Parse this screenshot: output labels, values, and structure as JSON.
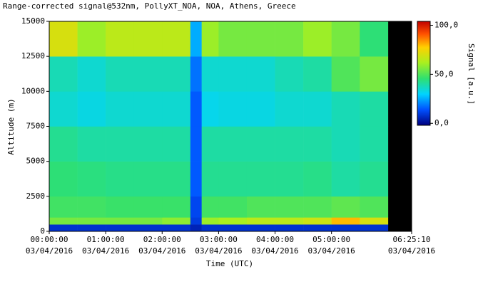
{
  "chart_data": {
    "type": "heatmap",
    "title": "Range-corrected signal@532nm, PollyXT_NOA, NOA, Athens, Greece",
    "x_label": "Time (UTC)",
    "y_label": "Altitude (m)",
    "colorbar_label": "Signal [a.u.]",
    "xlim": [
      0,
      6.4194
    ],
    "xticks": [
      {
        "value": 0,
        "label": "00:00:00"
      },
      {
        "value": 1,
        "label": "01:00:00"
      },
      {
        "value": 2,
        "label": "02:00:00"
      },
      {
        "value": 3,
        "label": "03:00:00"
      },
      {
        "value": 4,
        "label": "04:00:00"
      },
      {
        "value": 5,
        "label": "05:00:00"
      },
      {
        "value": 6.4194,
        "label": "06:25:10"
      }
    ],
    "xtick_dates": [
      "03/04/2016",
      "03/04/2016",
      "03/04/2016",
      "03/04/2016",
      "03/04/2016",
      "03/04/2016",
      "03/04/2016"
    ],
    "ylim": [
      0,
      15000
    ],
    "yticks": [
      0,
      2500,
      5000,
      7500,
      10000,
      12500,
      15000
    ],
    "x_edges": [
      0,
      0.5,
      1,
      1.5,
      2,
      2.5,
      2.7,
      3,
      3.5,
      4,
      4.5,
      5,
      5.5,
      6
    ],
    "y_edges": [
      0,
      500,
      1000,
      2500,
      5000,
      7500,
      10000,
      12500,
      15000
    ],
    "z": [
      [
        8,
        8,
        8,
        8,
        8,
        5,
        8,
        8,
        8,
        8,
        8,
        8,
        8
      ],
      [
        55,
        55,
        55,
        55,
        58,
        10,
        60,
        62,
        65,
        65,
        68,
        80,
        70
      ],
      [
        48,
        48,
        47,
        47,
        47,
        12,
        48,
        48,
        50,
        50,
        50,
        52,
        50
      ],
      [
        45,
        44,
        43,
        43,
        43,
        15,
        42,
        42,
        42,
        42,
        43,
        40,
        42
      ],
      [
        42,
        40,
        40,
        40,
        40,
        15,
        40,
        40,
        40,
        40,
        40,
        38,
        40
      ],
      [
        35,
        33,
        35,
        35,
        35,
        15,
        32,
        33,
        33,
        35,
        35,
        38,
        40
      ],
      [
        38,
        35,
        38,
        38,
        38,
        18,
        35,
        35,
        35,
        38,
        40,
        50,
        55
      ],
      [
        70,
        60,
        65,
        65,
        65,
        25,
        60,
        55,
        55,
        55,
        60,
        55,
        45
      ]
    ],
    "clim": [
      -2,
      104
    ],
    "cticks": [
      {
        "value": 0,
        "label": "0,0"
      },
      {
        "value": 50,
        "label": "50,0"
      },
      {
        "value": 100,
        "label": "100,0"
      }
    ],
    "colorscale": [
      [
        0,
        "#00007f"
      ],
      [
        0.15,
        "#0050ff"
      ],
      [
        0.3,
        "#00d4ff"
      ],
      [
        0.45,
        "#2fe070"
      ],
      [
        0.6,
        "#a8f020"
      ],
      [
        0.75,
        "#ffd000"
      ],
      [
        0.88,
        "#ff5000"
      ],
      [
        1,
        "#c00000"
      ]
    ],
    "missing_color": "#000000"
  }
}
